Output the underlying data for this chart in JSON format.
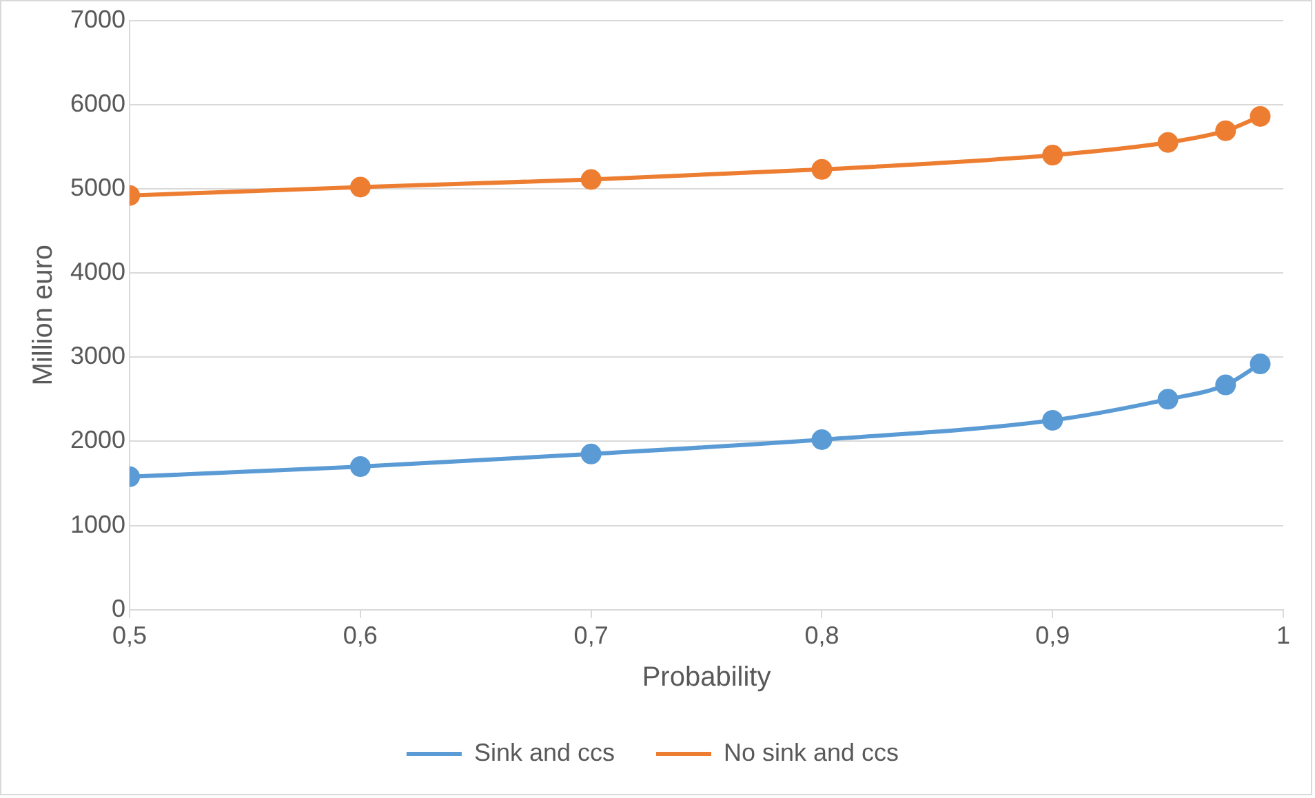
{
  "chart_data": {
    "type": "line",
    "xlabel": "Probability",
    "ylabel": "Million euro",
    "x": [
      0.5,
      0.6,
      0.7,
      0.8,
      0.9,
      0.95,
      0.975,
      0.99
    ],
    "series": [
      {
        "name": "Sink and ccs",
        "color": "#5b9bd5",
        "values": [
          1580,
          1700,
          1850,
          2020,
          2250,
          2500,
          2670,
          2920
        ]
      },
      {
        "name": "No sink and ccs",
        "color": "#ed7d31",
        "values": [
          4920,
          5020,
          5110,
          5230,
          5400,
          5550,
          5690,
          5860
        ]
      }
    ],
    "xlim": [
      0.5,
      1
    ],
    "xticks": [
      {
        "value": 0.5,
        "label": "0,5"
      },
      {
        "value": 0.6,
        "label": "0,6"
      },
      {
        "value": 0.7,
        "label": "0,7"
      },
      {
        "value": 0.8,
        "label": "0,8"
      },
      {
        "value": 0.9,
        "label": "0,9"
      },
      {
        "value": 1,
        "label": "1"
      }
    ],
    "ylim": [
      0,
      7000
    ],
    "yticks": [
      0,
      1000,
      2000,
      3000,
      4000,
      5000,
      6000,
      7000
    ],
    "grid": "y",
    "legend": "bottom",
    "marker": "circle",
    "line_style": "solid"
  }
}
